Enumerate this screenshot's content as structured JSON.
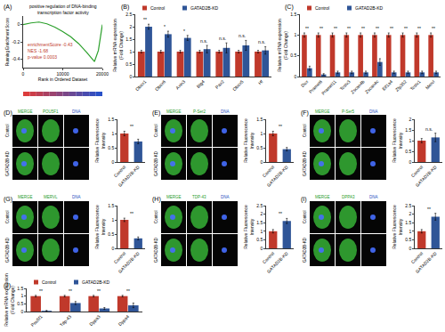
{
  "chart_data": [
    {
      "panel": "(A)",
      "type": "line",
      "title": "positive regulation of DNA-binding\ntranscription factor activity",
      "x_label": "Rank in Ordered Dataset",
      "y_label": "Running Enrichment Score",
      "x": [
        0,
        2000,
        4000,
        6000,
        8000,
        10000,
        12000,
        14000,
        16000,
        17000,
        18000,
        19000,
        20000
      ],
      "values": [
        0,
        0.02,
        0.03,
        0.01,
        -0.03,
        -0.08,
        -0.14,
        -0.22,
        -0.32,
        -0.38,
        -0.43,
        -0.3,
        0
      ],
      "color": "#2ca02c",
      "xlim": [
        0,
        20000
      ],
      "xticks": [
        0,
        10000,
        20000
      ],
      "ylim": [
        -0.5,
        0.1
      ],
      "yticks": [
        -0.4,
        -0.2,
        0
      ],
      "grid": false,
      "annotations": [
        "enrichmentScore -0.43",
        "NES -1.68",
        "p-value 0.0003"
      ]
    },
    {
      "panel": "(B)",
      "type": "bar",
      "y_label": "Relative mRNA expression\n(Fold Change)",
      "categories": [
        "Obox1",
        "Obox6",
        "Axin3",
        "Btg4",
        "Pax2",
        "Obox5",
        "Hf"
      ],
      "series": [
        {
          "name": "Control",
          "color": "#c0392b",
          "values": [
            1,
            1,
            1,
            1,
            1,
            1,
            1
          ],
          "errors": [
            0.05,
            0.05,
            0.05,
            0.05,
            0.05,
            0.05,
            0.05
          ]
        },
        {
          "name": "GATAD2B-KD",
          "color": "#2f5597",
          "values": [
            2.0,
            1.7,
            1.55,
            1.1,
            1.15,
            1.25,
            1.05
          ],
          "errors": [
            0.1,
            0.12,
            0.1,
            0.15,
            0.2,
            0.2,
            0.15
          ]
        }
      ],
      "significance": [
        "**",
        "*",
        "*",
        "n.s.",
        "n.s.",
        "n.s.",
        "n.s."
      ],
      "ylim": [
        0,
        2.5
      ],
      "yticks": [
        0,
        0.5,
        1,
        1.5,
        2,
        2.5
      ],
      "grid": false,
      "legend": "top"
    },
    {
      "panel": "(C)",
      "type": "bar",
      "y_label": "Relative mRNA expression\n(Fold Change)",
      "categories": [
        "Dux",
        "Pramel6",
        "Pramel11",
        "Tcstv3",
        "Zscan4b",
        "Zscan4c",
        "Eif1a4",
        "Zfp352",
        "Tcstv1",
        "Mervl"
      ],
      "series": [
        {
          "name": "Control",
          "color": "#c0392b",
          "values": [
            1,
            1,
            1,
            1,
            1,
            1,
            1,
            1,
            1,
            1
          ],
          "errors": [
            0.05,
            0.05,
            0.05,
            0.05,
            0.05,
            0.05,
            0.05,
            0.05,
            0.05,
            0.05
          ]
        },
        {
          "name": "GATAD2B-KD",
          "color": "#2f5597",
          "values": [
            0.2,
            0.05,
            0.1,
            0.1,
            0.1,
            0.35,
            0.1,
            0.1,
            0.1,
            0.1
          ],
          "errors": [
            0.05,
            0.02,
            0.03,
            0.03,
            0.03,
            0.08,
            0.03,
            0.03,
            0.03,
            0.03
          ]
        }
      ],
      "significance": [
        "**",
        "**",
        "**",
        "**",
        "**",
        "**",
        "**",
        "**",
        "**",
        "**"
      ],
      "ylim": [
        0,
        1.5
      ],
      "yticks": [
        0,
        0.5,
        1,
        1.5
      ],
      "grid": false,
      "legend": "top"
    },
    {
      "panel": "(D)",
      "type": "bar",
      "images": {
        "columns": [
          "MERGE",
          "POU5F1",
          "DNA"
        ],
        "rows": [
          "Control",
          "GATAD2B-KD"
        ]
      },
      "y_label": "Relative Fluorescence\nIntensity",
      "categories": [
        "Control",
        "GATAD2B-KD"
      ],
      "values": [
        1.0,
        0.72
      ],
      "errors": [
        0.08,
        0.08
      ],
      "colors": [
        "#c0392b",
        "#2f5597"
      ],
      "significance": "**",
      "ylim": [
        0,
        1.5
      ],
      "yticks": [
        0,
        0.5,
        1,
        1.5
      ]
    },
    {
      "panel": "(E)",
      "type": "bar",
      "images": {
        "columns": [
          "MERGE",
          "P-Ser2",
          "DNA"
        ],
        "rows": [
          "Control",
          "GATAD2B-KD"
        ]
      },
      "y_label": "Relative Fluorescence\nIntensity",
      "categories": [
        "Control",
        "GATAD2B-KD"
      ],
      "values": [
        1.0,
        0.45
      ],
      "errors": [
        0.08,
        0.06
      ],
      "colors": [
        "#c0392b",
        "#2f5597"
      ],
      "significance": "**",
      "ylim": [
        0,
        1.5
      ],
      "yticks": [
        0,
        0.5,
        1,
        1.5
      ]
    },
    {
      "panel": "(F)",
      "type": "bar",
      "images": {
        "columns": [
          "MERGE",
          "P-Ser5",
          "DNA"
        ],
        "rows": [
          "Control",
          "GATAD2B-KD"
        ]
      },
      "y_label": "Relative Fluorescence\nIntensity",
      "categories": [
        "Control",
        "GATAD2B-KD"
      ],
      "values": [
        1.0,
        1.15
      ],
      "errors": [
        0.1,
        0.2
      ],
      "colors": [
        "#c0392b",
        "#2f5597"
      ],
      "significance": "n.s.",
      "ylim": [
        0,
        2
      ],
      "yticks": [
        0,
        0.5,
        1,
        1.5,
        2
      ]
    },
    {
      "panel": "(G)",
      "type": "bar",
      "images": {
        "columns": [
          "MERGE",
          "MERVL",
          "DNA"
        ],
        "rows": [
          "Control",
          "GATAD2B-KD"
        ]
      },
      "y_label": "Relative Fluorescence\nIntensity",
      "categories": [
        "Control",
        "GATAD2B-KD"
      ],
      "values": [
        1.0,
        0.35
      ],
      "errors": [
        0.06,
        0.05
      ],
      "colors": [
        "#c0392b",
        "#2f5597"
      ],
      "significance": "**",
      "ylim": [
        0,
        1.5
      ],
      "yticks": [
        0,
        0.5,
        1,
        1.5
      ]
    },
    {
      "panel": "(H)",
      "type": "bar",
      "images": {
        "columns": [
          "MERGE",
          "TDP-43",
          "DNA"
        ],
        "rows": [
          "Control",
          "GATAD2B-KD"
        ]
      },
      "y_label": "Relative Fluorescence\nIntensity",
      "categories": [
        "Control",
        "GATAD2B-KD"
      ],
      "values": [
        1.0,
        1.6
      ],
      "errors": [
        0.1,
        0.15
      ],
      "colors": [
        "#c0392b",
        "#2f5597"
      ],
      "significance": "**",
      "ylim": [
        0,
        2.5
      ],
      "yticks": [
        0,
        0.5,
        1,
        1.5,
        2,
        2.5
      ]
    },
    {
      "panel": "(I)",
      "type": "bar",
      "images": {
        "columns": [
          "MERGE",
          "DPPA3",
          "DNA"
        ],
        "rows": [
          "Control",
          "GATAD2B-KD"
        ]
      },
      "y_label": "Relative Fluorescence\nIntensity",
      "categories": [
        "Control",
        "GATAD2B-KD"
      ],
      "values": [
        1.0,
        1.85
      ],
      "errors": [
        0.1,
        0.2
      ],
      "colors": [
        "#c0392b",
        "#2f5597"
      ],
      "significance": "**",
      "ylim": [
        0,
        2.5
      ],
      "yticks": [
        0,
        0.5,
        1,
        1.5,
        2,
        2.5
      ]
    },
    {
      "panel": "(J)",
      "type": "bar",
      "y_label": "Relative mRNA expression\n(Fold Change)",
      "categories": [
        "Pou5f1",
        "Tdp-43",
        "Dppa3",
        "Dppa4"
      ],
      "series": [
        {
          "name": "Control",
          "color": "#c0392b",
          "values": [
            1,
            1,
            1,
            1
          ],
          "errors": [
            0.05,
            0.05,
            0.05,
            0.05
          ]
        },
        {
          "name": "GATAD2B-KD",
          "color": "#2f5597",
          "values": [
            0.05,
            0.55,
            0.2,
            0.4
          ],
          "errors": [
            0.02,
            0.1,
            0.06,
            0.15
          ]
        }
      ],
      "significance": [
        "**",
        "**",
        "**",
        "**"
      ],
      "ylim": [
        0,
        1.5
      ],
      "yticks": [
        0,
        0.5,
        1,
        1.5
      ],
      "grid": false,
      "legend": "top"
    }
  ]
}
